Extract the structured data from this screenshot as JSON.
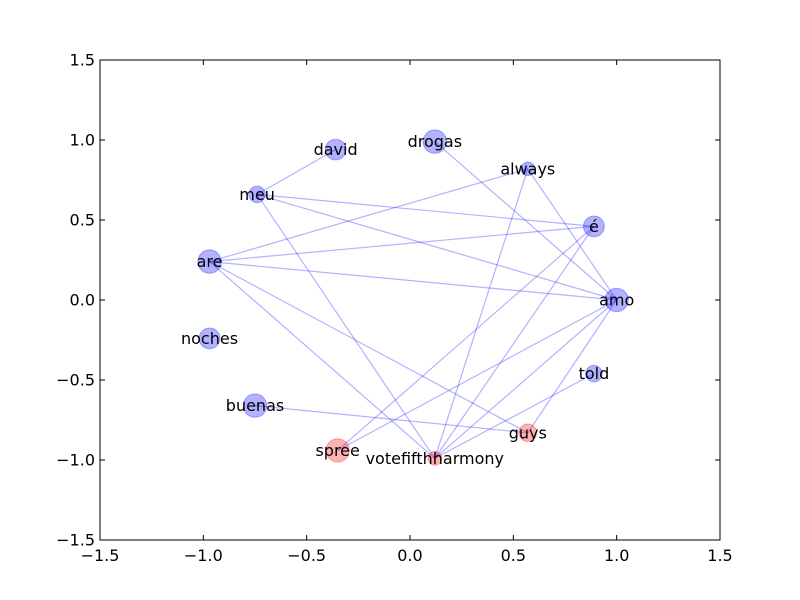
{
  "chart_data": {
    "type": "network",
    "xlim": [
      -1.5,
      1.5
    ],
    "ylim": [
      -1.5,
      1.5
    ],
    "xticks": [
      -1.5,
      -1.0,
      -0.5,
      0.0,
      0.5,
      1.0,
      1.5
    ],
    "yticks": [
      -1.5,
      -1.0,
      -0.5,
      0.0,
      0.5,
      1.0,
      1.5
    ],
    "xtick_labels": [
      "−1.5",
      "−1.0",
      "−0.5",
      "0.0",
      "0.5",
      "1.0",
      "1.5"
    ],
    "ytick_labels": [
      "−1.5",
      "−1.0",
      "−0.5",
      "0.0",
      "0.5",
      "1.0",
      "1.5"
    ],
    "grid": false,
    "edge_color": "#0000ff",
    "node_colors": {
      "blue": "#0000ff",
      "red": "#ff0000"
    },
    "nodes": [
      {
        "id": "david",
        "label": "david",
        "x": -0.36,
        "y": 0.94,
        "weight": 9,
        "color": "blue"
      },
      {
        "id": "drogas",
        "label": "drogas",
        "x": 0.12,
        "y": 0.99,
        "weight": 12,
        "color": "blue"
      },
      {
        "id": "always",
        "label": "always",
        "x": 0.57,
        "y": 0.82,
        "weight": 3,
        "color": "blue"
      },
      {
        "id": "meu",
        "label": "meu",
        "x": -0.74,
        "y": 0.66,
        "weight": 5,
        "color": "blue"
      },
      {
        "id": "e",
        "label": "é",
        "x": 0.89,
        "y": 0.46,
        "weight": 9,
        "color": "blue"
      },
      {
        "id": "are",
        "label": "are",
        "x": -0.97,
        "y": 0.24,
        "weight": 12,
        "color": "blue"
      },
      {
        "id": "amo",
        "label": "amo",
        "x": 1.0,
        "y": 0.0,
        "weight": 12,
        "color": "blue"
      },
      {
        "id": "noches",
        "label": "noches",
        "x": -0.97,
        "y": -0.24,
        "weight": 9,
        "color": "blue"
      },
      {
        "id": "told",
        "label": "told",
        "x": 0.89,
        "y": -0.46,
        "weight": 5,
        "color": "blue"
      },
      {
        "id": "buenas",
        "label": "buenas",
        "x": -0.75,
        "y": -0.66,
        "weight": 12,
        "color": "blue"
      },
      {
        "id": "guys",
        "label": "guys",
        "x": 0.57,
        "y": -0.83,
        "weight": 6,
        "color": "red"
      },
      {
        "id": "spree",
        "label": "spree",
        "x": -0.35,
        "y": -0.94,
        "weight": 12,
        "color": "red"
      },
      {
        "id": "votefifthharmony",
        "label": "votefifthharmony",
        "x": 0.12,
        "y": -0.99,
        "weight": 3,
        "color": "red"
      }
    ],
    "edges": [
      [
        "meu",
        "david"
      ],
      [
        "drogas",
        "amo"
      ],
      [
        "meu",
        "e"
      ],
      [
        "meu",
        "amo"
      ],
      [
        "meu",
        "votefifthharmony"
      ],
      [
        "are",
        "always"
      ],
      [
        "are",
        "e"
      ],
      [
        "are",
        "amo"
      ],
      [
        "are",
        "guys"
      ],
      [
        "are",
        "votefifthharmony"
      ],
      [
        "always",
        "amo"
      ],
      [
        "always",
        "votefifthharmony"
      ],
      [
        "e",
        "votefifthharmony"
      ],
      [
        "e",
        "spree"
      ],
      [
        "amo",
        "votefifthharmony"
      ],
      [
        "amo",
        "spree"
      ],
      [
        "amo",
        "guys"
      ],
      [
        "told",
        "votefifthharmony"
      ],
      [
        "buenas",
        "guys"
      ]
    ]
  }
}
